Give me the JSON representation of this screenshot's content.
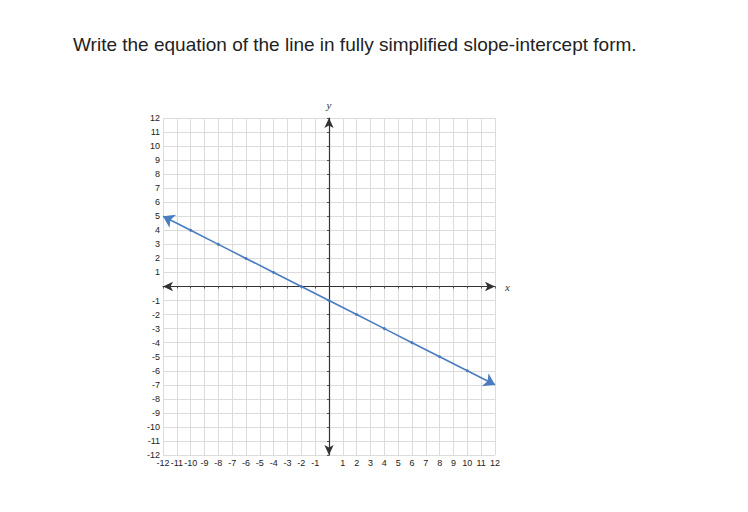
{
  "chart_data": {
    "type": "line",
    "title": "Write the equation of the line in fully simplified slope-intercept form.",
    "x_label": "x",
    "y_label": "y",
    "x": [
      -12,
      -10,
      -8,
      -6,
      -4,
      -2,
      0,
      2,
      4,
      6,
      8,
      10,
      12
    ],
    "values": [
      5,
      4,
      3,
      2,
      1,
      0,
      -1,
      -2,
      -3,
      -4,
      -5,
      -6,
      -7
    ],
    "color": "#4a7cc0",
    "marker": "circle",
    "xlim": [
      -12,
      12
    ],
    "ylim": [
      -12,
      12
    ],
    "xticks": [
      -12,
      -11,
      -10,
      -9,
      -8,
      -7,
      -6,
      -5,
      -4,
      -3,
      -2,
      -1,
      1,
      2,
      3,
      4,
      5,
      6,
      7,
      8,
      9,
      10,
      11,
      12
    ],
    "yticks": [
      -12,
      -11,
      -10,
      -9,
      -8,
      -7,
      -6,
      -5,
      -4,
      -3,
      -2,
      -1,
      1,
      2,
      3,
      4,
      5,
      6,
      7,
      8,
      9,
      10,
      11,
      12
    ],
    "grid": true
  }
}
